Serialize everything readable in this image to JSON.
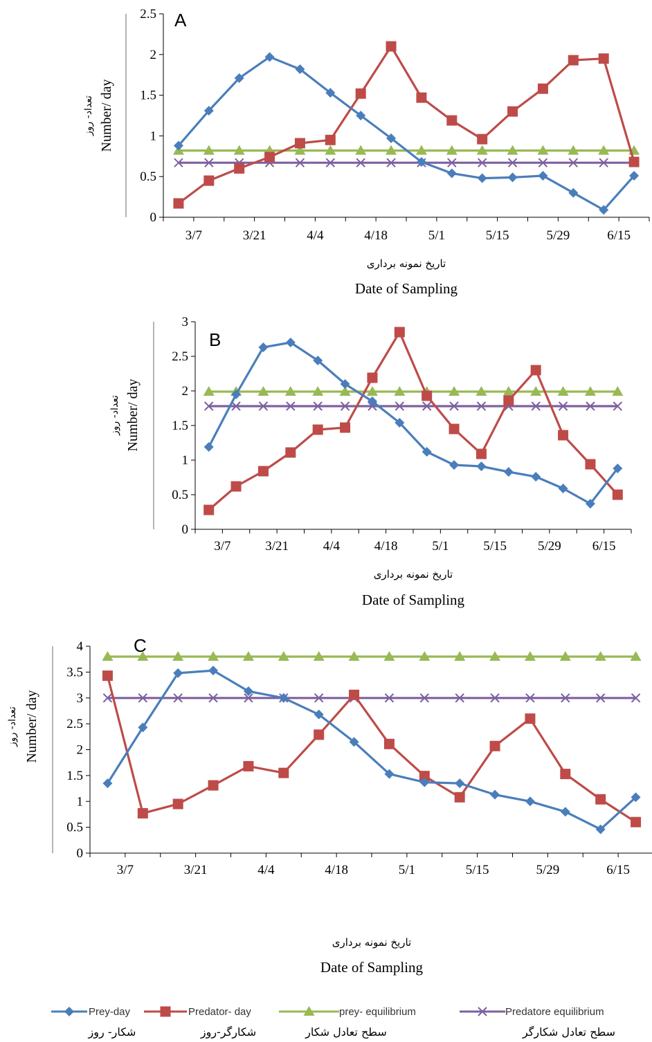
{
  "chart_data": [
    {
      "type": "line",
      "panel_label": "A",
      "ylabel": "Number/ day",
      "ylabel_fa": "تعداد- روز",
      "xlabel": "Date of Sampling",
      "xlabel_fa": "تاریخ نمونه برداری",
      "ylim": [
        0,
        2.5
      ],
      "yticks": [
        "0",
        "0.5",
        "1",
        "1.5",
        "2",
        "2.5"
      ],
      "xtick_labels": [
        "3/7",
        "3/21",
        "4/4",
        "4/18",
        "5/1",
        "5/15",
        "5/29",
        "6/15"
      ],
      "series": [
        {
          "key": "prey",
          "values": [
            0.88,
            1.31,
            1.71,
            1.97,
            1.82,
            1.53,
            1.25,
            0.97,
            0.68,
            0.54,
            0.48,
            0.49,
            0.51,
            0.3,
            0.09,
            0.51
          ]
        },
        {
          "key": "predator",
          "values": [
            0.17,
            0.45,
            0.6,
            0.74,
            0.91,
            0.95,
            1.52,
            2.1,
            1.47,
            1.19,
            0.96,
            1.3,
            1.58,
            1.93,
            1.95,
            0.68
          ]
        },
        {
          "key": "prey_eq",
          "values": [
            0.82,
            0.82,
            0.82,
            0.82,
            0.82,
            0.82,
            0.82,
            0.82,
            0.82,
            0.82,
            0.82,
            0.82,
            0.82,
            0.82,
            0.82,
            0.82
          ]
        },
        {
          "key": "pred_eq",
          "values": [
            0.67,
            0.67,
            0.67,
            0.67,
            0.67,
            0.67,
            0.67,
            0.67,
            0.67,
            0.67,
            0.67,
            0.67,
            0.67,
            0.67,
            0.67,
            0.67
          ]
        }
      ]
    },
    {
      "type": "line",
      "panel_label": "B",
      "ylabel": "Number/ day",
      "ylabel_fa": "تعداد- روز",
      "xlabel": "Date of Sampling",
      "xlabel_fa": "تاریخ نمونه برداری",
      "ylim": [
        0,
        3
      ],
      "yticks": [
        "0",
        "0.5",
        "1",
        "1.5",
        "2",
        "2.5",
        "3"
      ],
      "xtick_labels": [
        "3/7",
        "3/21",
        "4/4",
        "4/18",
        "5/1",
        "5/15",
        "5/29",
        "6/15"
      ],
      "series": [
        {
          "key": "prey",
          "values": [
            1.19,
            1.95,
            2.63,
            2.7,
            2.44,
            2.1,
            1.85,
            1.54,
            1.12,
            0.93,
            0.91,
            0.83,
            0.76,
            0.59,
            0.37,
            0.88
          ]
        },
        {
          "key": "predator",
          "values": [
            0.28,
            0.62,
            0.84,
            1.11,
            1.44,
            1.47,
            2.19,
            2.85,
            1.93,
            1.45,
            1.09,
            1.86,
            2.3,
            1.36,
            0.94,
            0.5
          ]
        },
        {
          "key": "prey_eq",
          "values": [
            1.99,
            1.99,
            1.99,
            1.99,
            1.99,
            1.99,
            1.99,
            1.99,
            1.99,
            1.99,
            1.99,
            1.99,
            1.99,
            1.99,
            1.99,
            1.99
          ]
        },
        {
          "key": "pred_eq",
          "values": [
            1.78,
            1.78,
            1.78,
            1.78,
            1.78,
            1.78,
            1.78,
            1.78,
            1.78,
            1.78,
            1.78,
            1.78,
            1.78,
            1.78,
            1.78,
            1.78
          ]
        }
      ]
    },
    {
      "type": "line",
      "panel_label": "C",
      "ylabel": "Number/ day",
      "ylabel_fa": "تعداد- روز",
      "xlabel": "Date of Sampling",
      "xlabel_fa": "تاریخ نمونه برداری",
      "ylim": [
        0,
        4
      ],
      "yticks": [
        "0",
        "0.5",
        "1",
        "1.5",
        "2",
        "2.5",
        "3",
        "3.5",
        "4"
      ],
      "xtick_labels": [
        "3/7",
        "3/21",
        "4/4",
        "4/18",
        "5/1",
        "5/15",
        "5/29",
        "6/15"
      ],
      "series": [
        {
          "key": "prey",
          "values": [
            1.35,
            2.43,
            3.48,
            3.53,
            3.13,
            3.0,
            2.68,
            2.15,
            1.53,
            1.37,
            1.35,
            1.13,
            1.0,
            0.8,
            0.46,
            1.08
          ]
        },
        {
          "key": "predator",
          "values": [
            3.43,
            0.77,
            0.95,
            1.31,
            1.68,
            1.55,
            2.29,
            3.06,
            2.11,
            1.49,
            1.08,
            2.07,
            2.6,
            1.53,
            1.04,
            0.6
          ]
        },
        {
          "key": "prey_eq",
          "values": [
            3.8,
            3.8,
            3.8,
            3.8,
            3.8,
            3.8,
            3.8,
            3.8,
            3.8,
            3.8,
            3.8,
            3.8,
            3.8,
            3.8,
            3.8,
            3.8
          ]
        },
        {
          "key": "pred_eq",
          "values": [
            3.0,
            3.0,
            3.0,
            3.0,
            3.0,
            3.0,
            3.0,
            3.0,
            3.0,
            3.0,
            3.0,
            3.0,
            3.0,
            3.0,
            3.0,
            3.0
          ]
        }
      ]
    }
  ],
  "legend": [
    {
      "key": "prey",
      "label": "Prey-day",
      "label_fa": "شکار- روز",
      "color": "#4a7ebb",
      "marker": "diamond"
    },
    {
      "key": "predator",
      "label": "Predator- day",
      "label_fa": "شکارگر-روز",
      "color": "#be4b48",
      "marker": "square"
    },
    {
      "key": "prey_eq",
      "label": "prey- equilibrium",
      "label_fa": "سطح تعادل شکار",
      "color": "#98b954",
      "marker": "triangle"
    },
    {
      "key": "pred_eq",
      "label": "Predatore equilibrium",
      "label_fa": "سطح تعادل شکارگر",
      "color": "#7d60a0",
      "marker": "x"
    }
  ]
}
